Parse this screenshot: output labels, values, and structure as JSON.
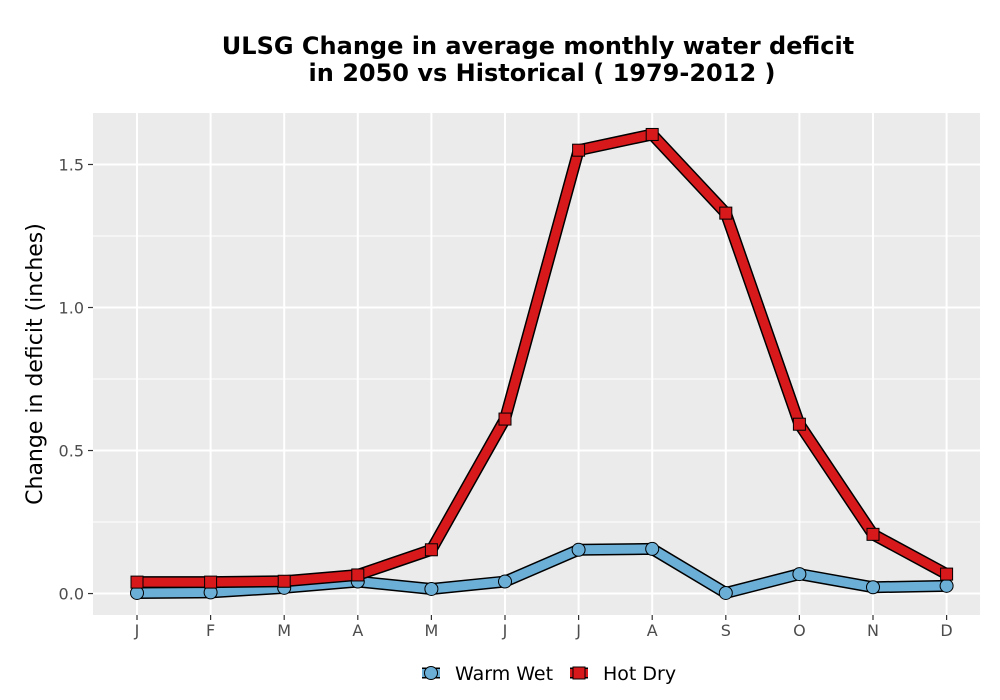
{
  "chart_data": {
    "type": "line",
    "title_lines": [
      "ULSG  Change in average monthly water deficit",
      "in 2050 vs Historical ( 1979-2012 )"
    ],
    "xlabel": "",
    "ylabel": "Change in deficit (inches)",
    "categories": [
      "J",
      "F",
      "M",
      "A",
      "M",
      "J",
      "J",
      "A",
      "S",
      "O",
      "N",
      "D"
    ],
    "y_ticks": [
      "0.0",
      "0.5",
      "1.0",
      "1.5"
    ],
    "y_tick_values": [
      0.0,
      0.5,
      1.0,
      1.5
    ],
    "ylim": [
      -0.075,
      1.68
    ],
    "grid": true,
    "legend_position": "bottom",
    "series": [
      {
        "name": "Warm Wet",
        "marker": "circle",
        "color": "#6baed6",
        "values": [
          0.002,
          0.004,
          0.02,
          0.042,
          0.016,
          0.042,
          0.153,
          0.156,
          0.002,
          0.068,
          0.022,
          0.027
        ]
      },
      {
        "name": "Hot Dry",
        "marker": "square",
        "color": "#d7191c",
        "values": [
          0.04,
          0.04,
          0.043,
          0.065,
          0.153,
          0.61,
          1.55,
          1.605,
          1.33,
          0.592,
          0.207,
          0.068
        ]
      }
    ],
    "panel_background": "#ebebeb",
    "grid_color": "#ffffff"
  }
}
